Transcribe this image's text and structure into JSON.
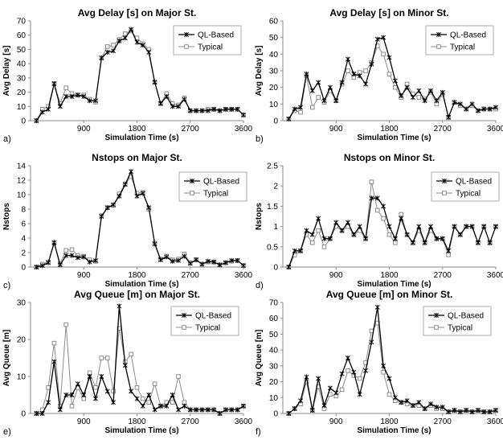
{
  "chart_data": [
    {
      "type": "line",
      "panel_label": "a)",
      "title": "Avg Delay [s] on Major St.",
      "xlabel": "Simulation Time (s)",
      "ylabel": "Avg Delay [s]",
      "xlim": [
        0,
        3600
      ],
      "ylim": [
        0,
        70
      ],
      "yticks": [
        0,
        10,
        20,
        30,
        40,
        50,
        60,
        70
      ],
      "xticks": [
        900,
        1800,
        2700,
        3600
      ],
      "grid": false,
      "legend_position": "top-right",
      "x": [
        100,
        200,
        300,
        400,
        500,
        600,
        700,
        800,
        900,
        1000,
        1100,
        1200,
        1300,
        1400,
        1500,
        1600,
        1700,
        1800,
        1900,
        2000,
        2100,
        2200,
        2300,
        2400,
        2500,
        2600,
        2700,
        2800,
        2900,
        3000,
        3100,
        3200,
        3300,
        3400,
        3500,
        3600
      ],
      "series": [
        {
          "name": "QL-Based",
          "values": [
            0,
            6,
            8,
            26,
            10,
            17,
            17,
            18,
            17,
            14,
            14,
            44,
            48,
            49,
            56,
            58,
            64,
            55,
            53,
            48,
            27,
            12,
            17,
            10,
            10,
            15,
            7,
            7,
            7,
            7,
            8,
            7,
            8,
            8,
            8,
            4
          ]
        },
        {
          "name": "Typical",
          "values": [
            0,
            8,
            10,
            26,
            12,
            23,
            19,
            18,
            18,
            15,
            13,
            44,
            52,
            53,
            57,
            61,
            63,
            58,
            54,
            50,
            27,
            12,
            19,
            12,
            11,
            16,
            7,
            7,
            7,
            8,
            8,
            7,
            8,
            8,
            8,
            4
          ]
        }
      ]
    },
    {
      "type": "line",
      "panel_label": "b)",
      "title": "Avg Delay [s] on Minor St.",
      "xlabel": "Simulation Time (s)",
      "ylabel": "Avg Delay [s]",
      "xlim": [
        0,
        3600
      ],
      "ylim": [
        0,
        60
      ],
      "yticks": [
        0,
        10,
        20,
        30,
        40,
        50,
        60
      ],
      "xticks": [
        900,
        1800,
        2700,
        3600
      ],
      "grid": false,
      "legend_position": "top-right",
      "x": [
        100,
        200,
        300,
        400,
        500,
        600,
        700,
        800,
        900,
        1000,
        1100,
        1200,
        1300,
        1400,
        1500,
        1600,
        1700,
        1800,
        1900,
        2000,
        2100,
        2200,
        2300,
        2400,
        2500,
        2600,
        2700,
        2800,
        2900,
        3000,
        3100,
        3200,
        3300,
        3400,
        3500,
        3600
      ],
      "series": [
        {
          "name": "QL-Based",
          "values": [
            1,
            7,
            8,
            28,
            18,
            23,
            12,
            20,
            12,
            23,
            37,
            28,
            27,
            22,
            34,
            49,
            50,
            38,
            24,
            15,
            20,
            14,
            18,
            12,
            18,
            12,
            17,
            2,
            11,
            10,
            7,
            10,
            6,
            7,
            7,
            8
          ]
        },
        {
          "name": "Typical",
          "values": [
            1,
            6,
            5,
            27,
            8,
            14,
            11,
            18,
            12,
            22,
            30,
            26,
            29,
            30,
            35,
            45,
            40,
            28,
            20,
            14,
            22,
            16,
            14,
            13,
            17,
            10,
            16,
            2,
            11,
            9,
            7,
            9,
            6,
            7,
            7,
            7
          ]
        }
      ]
    },
    {
      "type": "line",
      "panel_label": "c)",
      "title": "Nstops on Major St.",
      "xlabel": "Simulation Time (s)",
      "ylabel": "Nstops",
      "xlim": [
        0,
        3600
      ],
      "ylim": [
        0,
        14
      ],
      "yticks": [
        0,
        2,
        4,
        6,
        8,
        10,
        12,
        14
      ],
      "xticks": [
        900,
        1800,
        2700,
        3600
      ],
      "grid": false,
      "legend_position": "top-right",
      "x": [
        100,
        200,
        300,
        400,
        500,
        600,
        700,
        800,
        900,
        1000,
        1100,
        1200,
        1300,
        1400,
        1500,
        1600,
        1700,
        1800,
        1900,
        2000,
        2100,
        2200,
        2300,
        2400,
        2500,
        2600,
        2700,
        2800,
        2900,
        3000,
        3100,
        3200,
        3300,
        3400,
        3500,
        3600
      ],
      "series": [
        {
          "name": "QL-Based",
          "values": [
            0,
            0.2,
            0.6,
            3.4,
            0.3,
            1.6,
            1.6,
            1.3,
            1.4,
            0.7,
            0.9,
            7.0,
            8.2,
            8.6,
            9.8,
            11.4,
            13.2,
            9.8,
            10.2,
            8.2,
            3.2,
            1.0,
            1.4,
            0.8,
            0.9,
            1.5,
            0.5,
            1.0,
            0.4,
            0.8,
            0.7,
            0.3,
            0.6,
            0.9,
            0.9,
            0.2
          ]
        },
        {
          "name": "Typical",
          "values": [
            0,
            0.4,
            0.7,
            3.3,
            0.5,
            2.3,
            2.4,
            1.6,
            1.5,
            1.0,
            0.8,
            7.1,
            8.2,
            8.5,
            10.1,
            11.5,
            12.5,
            10.2,
            10.3,
            8.0,
            3.3,
            1.1,
            1.5,
            1.0,
            1.1,
            1.8,
            0.6,
            1.0,
            0.4,
            0.7,
            0.7,
            0.3,
            0.6,
            0.8,
            0.9,
            0.2
          ]
        }
      ]
    },
    {
      "type": "line",
      "panel_label": "d)",
      "title": "Nstops on Minor St.",
      "xlabel": "Simulation Time (s)",
      "ylabel": "Nstops",
      "xlim": [
        0,
        3600
      ],
      "ylim": [
        0,
        2.5
      ],
      "yticks": [
        0,
        0.5,
        1,
        1.5,
        2,
        2.5
      ],
      "xticks": [
        900,
        1800,
        2700,
        3600
      ],
      "grid": false,
      "legend_position": "top-right",
      "x": [
        100,
        200,
        300,
        400,
        500,
        600,
        700,
        800,
        900,
        1000,
        1100,
        1200,
        1300,
        1400,
        1500,
        1600,
        1700,
        1800,
        1900,
        2000,
        2100,
        2200,
        2300,
        2400,
        2500,
        2600,
        2700,
        2800,
        2900,
        3000,
        3100,
        3200,
        3300,
        3400,
        3500,
        3600
      ],
      "series": [
        {
          "name": "QL-Based",
          "values": [
            0,
            0.4,
            0.4,
            0.9,
            0.8,
            1.2,
            0.7,
            0.7,
            1.1,
            0.9,
            1.1,
            0.8,
            1.0,
            0.7,
            1.7,
            1.7,
            1.5,
            1.0,
            0.7,
            1.2,
            0.8,
            0.6,
            1.0,
            0.6,
            1.0,
            0.7,
            0.7,
            0.4,
            1.0,
            0.8,
            1.0,
            1.0,
            0.6,
            1.0,
            0.6,
            1.0
          ]
        },
        {
          "name": "Typical",
          "values": [
            0,
            0.3,
            0.4,
            0.8,
            0.6,
            0.9,
            0.5,
            0.7,
            1.0,
            0.9,
            1.0,
            0.8,
            0.9,
            0.7,
            2.1,
            1.4,
            1.2,
            0.8,
            0.6,
            1.3,
            0.8,
            0.6,
            0.9,
            0.6,
            0.9,
            0.7,
            0.7,
            0.3,
            1.0,
            0.8,
            1.0,
            1.0,
            0.6,
            1.0,
            0.6,
            1.0
          ]
        }
      ]
    },
    {
      "type": "line",
      "panel_label": "e)",
      "title": "Avg Queue [m] on Major St.",
      "xlabel": "Simulation Time (s)",
      "ylabel": "Avg Queue [m]",
      "xlim": [
        0,
        3600
      ],
      "ylim": [
        0,
        30
      ],
      "yticks": [
        0,
        10,
        20,
        30
      ],
      "xticks": [
        900,
        1800,
        2700,
        3600
      ],
      "grid": false,
      "legend_position": "top-right",
      "x": [
        100,
        200,
        300,
        400,
        500,
        600,
        700,
        800,
        900,
        1000,
        1100,
        1200,
        1300,
        1400,
        1500,
        1600,
        1700,
        1800,
        1900,
        2000,
        2100,
        2200,
        2300,
        2400,
        2500,
        2600,
        2700,
        2800,
        2900,
        3000,
        3100,
        3200,
        3300,
        3400,
        3500,
        3600
      ],
      "series": [
        {
          "name": "QL-Based",
          "values": [
            0,
            0,
            3,
            14,
            1,
            5,
            5,
            8,
            5,
            10,
            4,
            10,
            6,
            3,
            29,
            13,
            6,
            4,
            2,
            5,
            1,
            2,
            2,
            5,
            1,
            2,
            1,
            1,
            1,
            1,
            1,
            0,
            1,
            1,
            1,
            2
          ]
        },
        {
          "name": "Typical",
          "values": [
            0,
            1,
            7,
            19,
            2,
            24,
            2,
            7,
            4,
            11,
            7,
            15,
            15,
            6,
            23,
            14,
            16,
            7,
            4,
            3,
            8,
            2,
            3,
            3,
            10,
            3,
            1,
            1,
            1,
            1,
            1,
            0,
            1,
            1,
            1,
            2
          ]
        }
      ]
    },
    {
      "type": "line",
      "panel_label": "f)",
      "title": "Avg Queue [m] on Minor St.",
      "xlabel": "Simulation Time (s)",
      "ylabel": "Avg Queue [m]",
      "xlim": [
        0,
        3600
      ],
      "ylim": [
        0,
        70
      ],
      "yticks": [
        0,
        10,
        20,
        30,
        40,
        50,
        60,
        70
      ],
      "xticks": [
        900,
        1800,
        2700,
        3600
      ],
      "grid": false,
      "legend_position": "top-right",
      "x": [
        100,
        200,
        300,
        400,
        500,
        600,
        700,
        800,
        900,
        1000,
        1100,
        1200,
        1300,
        1400,
        1500,
        1600,
        1700,
        1800,
        1900,
        2000,
        2100,
        2200,
        2300,
        2400,
        2500,
        2600,
        2700,
        2800,
        2900,
        3000,
        3100,
        3200,
        3300,
        3400,
        3500,
        3600
      ],
      "series": [
        {
          "name": "QL-Based",
          "values": [
            0,
            3,
            8,
            23,
            2,
            22,
            5,
            16,
            13,
            25,
            35,
            26,
            12,
            27,
            45,
            67,
            30,
            22,
            10,
            7,
            8,
            5,
            7,
            3,
            6,
            4,
            4,
            1,
            2,
            1,
            2,
            1,
            2,
            1,
            1,
            2
          ]
        },
        {
          "name": "Typical",
          "values": [
            0,
            3,
            6,
            20,
            2,
            17,
            3,
            12,
            11,
            15,
            27,
            24,
            22,
            32,
            52,
            57,
            26,
            12,
            8,
            7,
            6,
            5,
            5,
            3,
            5,
            3,
            3,
            1,
            2,
            1,
            2,
            1,
            2,
            1,
            1,
            2
          ]
        }
      ]
    }
  ]
}
